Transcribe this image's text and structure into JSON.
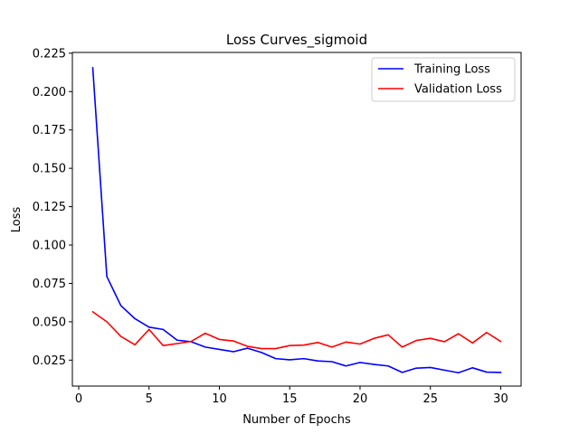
{
  "chart_data": {
    "type": "line",
    "title": "Loss Curves_sigmoid",
    "xlabel": "Number of Epochs",
    "ylabel": "Loss",
    "xlim": [
      -0.45,
      31.45
    ],
    "ylim": [
      0.0081,
      0.2255
    ],
    "xticks": [
      0,
      5,
      10,
      15,
      20,
      25,
      30
    ],
    "xtick_labels": [
      "0",
      "5",
      "10",
      "15",
      "20",
      "25",
      "30"
    ],
    "yticks": [
      0.025,
      0.05,
      0.075,
      0.1,
      0.125,
      0.15,
      0.175,
      0.2,
      0.225
    ],
    "ytick_labels": [
      "0.025",
      "0.050",
      "0.075",
      "0.100",
      "0.125",
      "0.150",
      "0.175",
      "0.200",
      "0.225"
    ],
    "grid": false,
    "legend_position": "upper right",
    "x": [
      1,
      2,
      3,
      4,
      5,
      6,
      7,
      8,
      9,
      10,
      11,
      12,
      13,
      14,
      15,
      16,
      17,
      18,
      19,
      20,
      21,
      22,
      23,
      24,
      25,
      26,
      27,
      28,
      29,
      30
    ],
    "series": [
      {
        "name": "Training Loss",
        "color": "#0000ff",
        "values": [
          0.2155,
          0.0795,
          0.0605,
          0.052,
          0.0465,
          0.045,
          0.038,
          0.037,
          0.0335,
          0.032,
          0.0305,
          0.0328,
          0.03,
          0.026,
          0.0252,
          0.026,
          0.0245,
          0.024,
          0.0212,
          0.0235,
          0.0222,
          0.0212,
          0.017,
          0.0198,
          0.0202,
          0.0185,
          0.0168,
          0.02,
          0.0172,
          0.017
        ]
      },
      {
        "name": "Validation Loss",
        "color": "#ff0000",
        "values": [
          0.0565,
          0.05,
          0.0405,
          0.035,
          0.045,
          0.0345,
          0.0358,
          0.0372,
          0.0425,
          0.0385,
          0.0375,
          0.034,
          0.0325,
          0.0325,
          0.0345,
          0.0348,
          0.0365,
          0.0335,
          0.0368,
          0.0355,
          0.0392,
          0.0415,
          0.0335,
          0.0378,
          0.0392,
          0.037,
          0.0422,
          0.0362,
          0.043,
          0.0372
        ]
      }
    ]
  }
}
